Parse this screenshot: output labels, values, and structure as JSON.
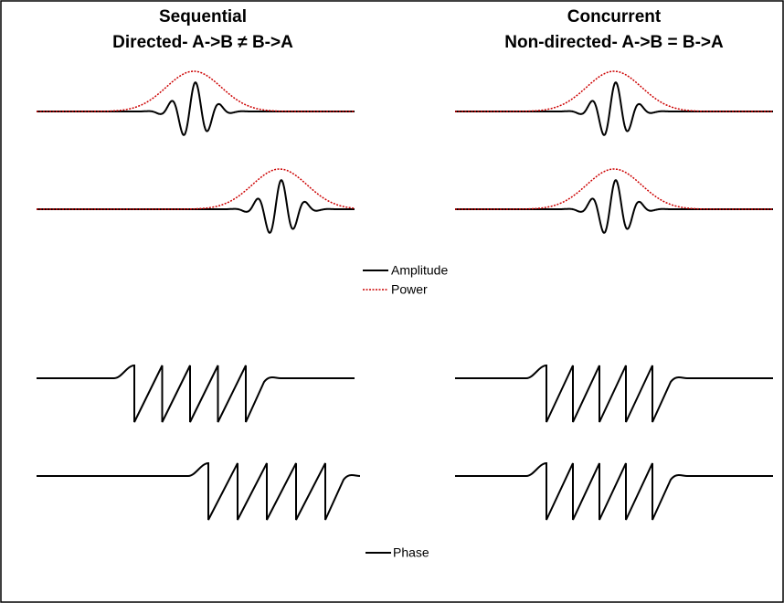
{
  "left_panel": {
    "title": "Sequential",
    "subtitle": "Directed- A->B ≠ B->A"
  },
  "right_panel": {
    "title": "Concurrent",
    "subtitle": "Non-directed- A->B = B->A"
  },
  "legend_top": {
    "items": [
      "Amplitude",
      "Power"
    ]
  },
  "legend_bottom": {
    "items": [
      "Phase"
    ]
  }
}
